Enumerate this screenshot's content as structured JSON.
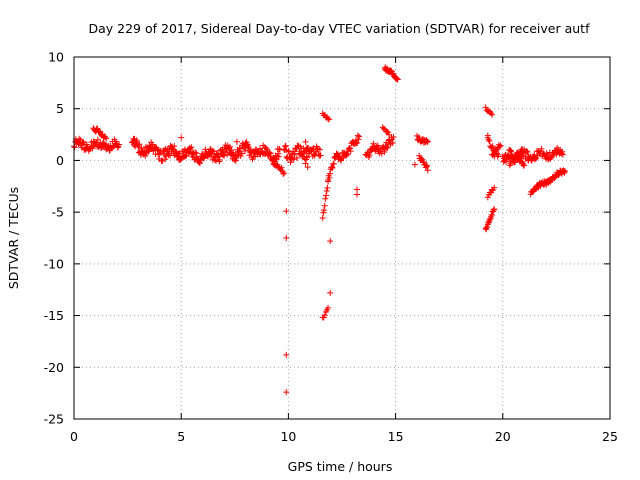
{
  "chart_data": {
    "type": "scatter",
    "title": "Day 229 of 2017, Sidereal Day-to-day VTEC variation (SDTVAR) for receiver autf",
    "xlabel": "GPS time / hours",
    "ylabel": "SDTVAR / TECUs",
    "xlim": [
      0,
      25
    ],
    "ylim": [
      -25,
      10
    ],
    "xticks": [
      0,
      5,
      10,
      15,
      20,
      25
    ],
    "yticks": [
      10,
      5,
      0,
      -5,
      -10,
      -15,
      -20,
      -25
    ],
    "marker": "+",
    "marker_color": "#ff0000",
    "grid": true,
    "segments": [
      {
        "x0": 0.0,
        "x1": 2.1,
        "y0": 1.5,
        "y1": 1.4,
        "spread": 0.8,
        "step": 0.03
      },
      {
        "x0": 0.9,
        "x1": 1.5,
        "y0": 3.0,
        "y1": 2.2,
        "spread": 0.4,
        "step": 0.04
      },
      {
        "x0": 2.7,
        "x1": 4.5,
        "y0": 1.4,
        "y1": 0.6,
        "spread": 1.0,
        "step": 0.025
      },
      {
        "x0": 4.5,
        "x1": 6.2,
        "y0": 0.8,
        "y1": 0.4,
        "spread": 1.0,
        "step": 0.025
      },
      {
        "x0": 6.2,
        "x1": 8.0,
        "y0": 0.5,
        "y1": 0.9,
        "spread": 1.0,
        "step": 0.025
      },
      {
        "x0": 8.0,
        "x1": 9.6,
        "y0": 1.0,
        "y1": 0.6,
        "spread": 1.0,
        "step": 0.025
      },
      {
        "x0": 9.3,
        "x1": 9.8,
        "y0": 0.0,
        "y1": -1.3,
        "spread": 0.5,
        "step": 0.04
      },
      {
        "x0": 9.8,
        "x1": 10.9,
        "y0": 1.0,
        "y1": 0.3,
        "spread": 1.2,
        "step": 0.025
      },
      {
        "x0": 10.8,
        "x1": 11.5,
        "y0": 1.6,
        "y1": 0.3,
        "spread": 0.9,
        "step": 0.03
      },
      {
        "x0": 11.6,
        "x1": 11.9,
        "y0": 4.6,
        "y1": 4.0,
        "spread": 0.3,
        "step": 0.05
      },
      {
        "x0": 11.6,
        "x1": 11.85,
        "y0": -5.5,
        "y1": -2.0,
        "spread": 0.3,
        "step": 0.03
      },
      {
        "x0": 11.85,
        "x1": 12.3,
        "y0": -1.5,
        "y1": 0.6,
        "spread": 0.6,
        "step": 0.03
      },
      {
        "x0": 11.6,
        "x1": 11.85,
        "y0": -15.3,
        "y1": -14.2,
        "spread": 0.3,
        "step": 0.05
      },
      {
        "x0": 12.3,
        "x1": 13.3,
        "y0": 0.0,
        "y1": 2.0,
        "spread": 0.8,
        "step": 0.03
      },
      {
        "x0": 13.6,
        "x1": 14.9,
        "y0": 0.5,
        "y1": 1.8,
        "spread": 0.9,
        "step": 0.03
      },
      {
        "x0": 14.4,
        "x1": 14.7,
        "y0": 3.2,
        "y1": 2.5,
        "spread": 0.3,
        "step": 0.05
      },
      {
        "x0": 14.5,
        "x1": 15.1,
        "y0": 9.0,
        "y1": 7.8,
        "spread": 0.3,
        "step": 0.02
      },
      {
        "x0": 16.0,
        "x1": 16.5,
        "y0": 2.3,
        "y1": 1.7,
        "spread": 0.4,
        "step": 0.03
      },
      {
        "x0": 16.1,
        "x1": 16.5,
        "y0": 0.5,
        "y1": -0.9,
        "spread": 0.4,
        "step": 0.03
      },
      {
        "x0": 19.2,
        "x1": 19.5,
        "y0": 5.0,
        "y1": 4.6,
        "spread": 0.3,
        "step": 0.05
      },
      {
        "x0": 19.3,
        "x1": 19.8,
        "y0": 2.0,
        "y1": 0.5,
        "spread": 0.5,
        "step": 0.04
      },
      {
        "x0": 19.2,
        "x1": 19.6,
        "y0": -6.8,
        "y1": -4.5,
        "spread": 0.3,
        "step": 0.025
      },
      {
        "x0": 19.3,
        "x1": 19.6,
        "y0": -3.5,
        "y1": -2.5,
        "spread": 0.3,
        "step": 0.05
      },
      {
        "x0": 19.5,
        "x1": 19.9,
        "y0": 0.5,
        "y1": 1.5,
        "spread": 0.5,
        "step": 0.04
      },
      {
        "x0": 20.0,
        "x1": 21.2,
        "y0": 0.0,
        "y1": 0.6,
        "spread": 1.0,
        "step": 0.025
      },
      {
        "x0": 20.3,
        "x1": 21.0,
        "y0": 1.0,
        "y1": -0.5,
        "spread": 0.5,
        "step": 0.03
      },
      {
        "x0": 21.2,
        "x1": 22.8,
        "y0": 0.4,
        "y1": 0.8,
        "spread": 0.7,
        "step": 0.03
      },
      {
        "x0": 21.3,
        "x1": 22.9,
        "y0": -3.0,
        "y1": -1.0,
        "spread": 0.4,
        "step": 0.025
      }
    ],
    "points": [
      {
        "x": 9.9,
        "y": -4.9
      },
      {
        "x": 9.9,
        "y": -7.5
      },
      {
        "x": 9.9,
        "y": -18.8
      },
      {
        "x": 9.9,
        "y": -22.4
      },
      {
        "x": 11.95,
        "y": -7.8
      },
      {
        "x": 11.95,
        "y": -12.8
      },
      {
        "x": 13.2,
        "y": -2.8
      },
      {
        "x": 13.2,
        "y": -3.3
      },
      {
        "x": 19.3,
        "y": 2.4
      },
      {
        "x": 5.0,
        "y": 2.2
      },
      {
        "x": 7.6,
        "y": 1.8
      },
      {
        "x": 14.2,
        "y": 0.9
      },
      {
        "x": 15.9,
        "y": -0.4
      }
    ]
  }
}
